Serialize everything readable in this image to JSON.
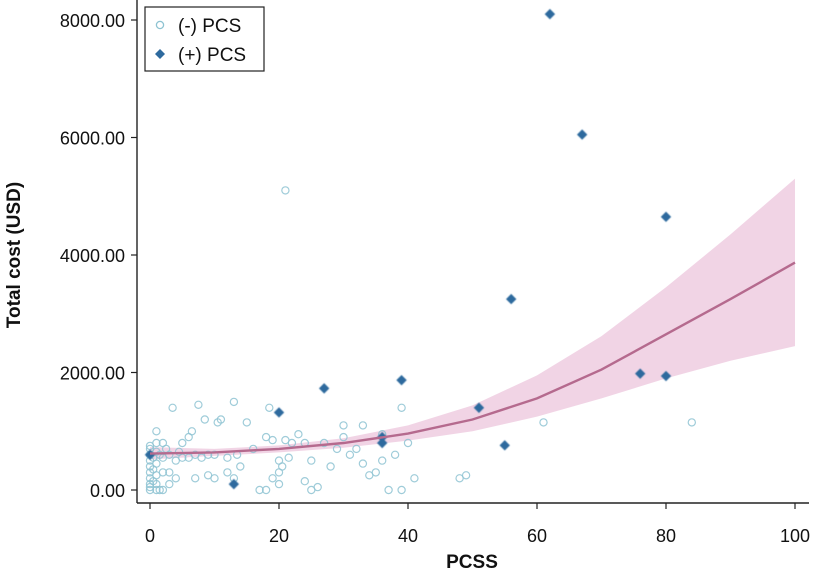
{
  "chart_data": {
    "type": "scatter",
    "title": "",
    "xlabel": "PCSS",
    "ylabel": "Total cost (USD)",
    "xlim": [
      0,
      100
    ],
    "ylim": [
      0,
      8000
    ],
    "x_ticks": [
      0,
      20,
      40,
      60,
      80,
      100
    ],
    "x_tick_labels": [
      "0",
      "20",
      "40",
      "60",
      "80",
      "100"
    ],
    "y_ticks": [
      0,
      2000,
      4000,
      6000,
      8000
    ],
    "y_tick_labels": [
      "0.00",
      "2000.00",
      "4000.00",
      "6000.00",
      "8000.00"
    ],
    "grid": false,
    "legend_position": "top-left",
    "legend": [
      {
        "label": "(-) PCS",
        "marker": "open-circle"
      },
      {
        "label": "(+) PCS",
        "marker": "filled-diamond"
      }
    ],
    "colors": {
      "neg_pcs": "#8ec3d2",
      "pos_pcs": "#2e6a9e",
      "fit_line": "#b56a8e",
      "ci_band": "#ecc6dc"
    },
    "series": [
      {
        "name": "(-) PCS",
        "marker": "open-circle",
        "points": [
          [
            0,
            0
          ],
          [
            0,
            50
          ],
          [
            0,
            100
          ],
          [
            0,
            200
          ],
          [
            0,
            300
          ],
          [
            0,
            400
          ],
          [
            0,
            500
          ],
          [
            0,
            600
          ],
          [
            0,
            700
          ],
          [
            0,
            750
          ],
          [
            0.5,
            150
          ],
          [
            0.5,
            350
          ],
          [
            0.5,
            550
          ],
          [
            1,
            0
          ],
          [
            1,
            100
          ],
          [
            1,
            250
          ],
          [
            1,
            450
          ],
          [
            1,
            650
          ],
          [
            1,
            800
          ],
          [
            1,
            1000
          ],
          [
            1.5,
            0
          ],
          [
            1.5,
            600
          ],
          [
            2,
            0
          ],
          [
            2,
            300
          ],
          [
            2,
            550
          ],
          [
            2,
            800
          ],
          [
            2.5,
            700
          ],
          [
            3,
            100
          ],
          [
            3,
            300
          ],
          [
            3,
            600
          ],
          [
            3.5,
            1400
          ],
          [
            4,
            500
          ],
          [
            4,
            200
          ],
          [
            4.5,
            650
          ],
          [
            5,
            550
          ],
          [
            5,
            800
          ],
          [
            6,
            550
          ],
          [
            6,
            900
          ],
          [
            6.5,
            1000
          ],
          [
            7,
            200
          ],
          [
            7,
            600
          ],
          [
            7.5,
            1450
          ],
          [
            8,
            550
          ],
          [
            8.5,
            1200
          ],
          [
            9,
            250
          ],
          [
            9,
            600
          ],
          [
            10,
            200
          ],
          [
            10,
            600
          ],
          [
            10.5,
            1150
          ],
          [
            11,
            1200
          ],
          [
            12,
            300
          ],
          [
            12,
            550
          ],
          [
            13,
            1500
          ],
          [
            13,
            200
          ],
          [
            13.5,
            600
          ],
          [
            14,
            400
          ],
          [
            15,
            1150
          ],
          [
            16,
            700
          ],
          [
            17,
            0
          ],
          [
            18,
            0
          ],
          [
            18,
            900
          ],
          [
            18.5,
            1400
          ],
          [
            19,
            200
          ],
          [
            19,
            850
          ],
          [
            20,
            100
          ],
          [
            20,
            300
          ],
          [
            20,
            500
          ],
          [
            20.5,
            400
          ],
          [
            21,
            5100
          ],
          [
            21,
            850
          ],
          [
            21.5,
            550
          ],
          [
            22,
            800
          ],
          [
            23,
            950
          ],
          [
            24,
            800
          ],
          [
            24,
            150
          ],
          [
            25,
            0
          ],
          [
            25,
            500
          ],
          [
            26,
            50
          ],
          [
            27,
            800
          ],
          [
            28,
            400
          ],
          [
            29,
            700
          ],
          [
            30,
            1100
          ],
          [
            30,
            900
          ],
          [
            31,
            600
          ],
          [
            32,
            700
          ],
          [
            33,
            1100
          ],
          [
            33,
            450
          ],
          [
            34,
            250
          ],
          [
            35,
            300
          ],
          [
            36,
            950
          ],
          [
            36,
            500
          ],
          [
            37,
            0
          ],
          [
            38,
            600
          ],
          [
            39,
            0
          ],
          [
            39,
            1400
          ],
          [
            40,
            800
          ],
          [
            41,
            200
          ],
          [
            48,
            200
          ],
          [
            49,
            250
          ],
          [
            61,
            1150
          ],
          [
            84,
            1150
          ]
        ]
      },
      {
        "name": "(+) PCS",
        "marker": "filled-diamond",
        "points": [
          [
            0,
            600
          ],
          [
            13,
            100
          ],
          [
            20,
            1320
          ],
          [
            27,
            1730
          ],
          [
            36,
            800
          ],
          [
            36,
            900
          ],
          [
            39,
            1870
          ],
          [
            51,
            1400
          ],
          [
            55,
            760
          ],
          [
            56,
            3250
          ],
          [
            62,
            8100
          ],
          [
            67,
            6050
          ],
          [
            76,
            1980
          ],
          [
            80,
            1940
          ],
          [
            80,
            4650
          ]
        ]
      }
    ],
    "fit": {
      "name": "fitted",
      "x": [
        0,
        10,
        20,
        30,
        40,
        50,
        60,
        70,
        80,
        90,
        100
      ],
      "y": [
        620,
        640,
        700,
        800,
        960,
        1200,
        1560,
        2050,
        2650,
        3250,
        3870
      ],
      "ci_lower": [
        520,
        580,
        640,
        720,
        840,
        1000,
        1250,
        1560,
        1900,
        2200,
        2450
      ],
      "ci_upper": [
        730,
        700,
        760,
        880,
        1100,
        1440,
        1950,
        2620,
        3450,
        4350,
        5300
      ]
    }
  }
}
